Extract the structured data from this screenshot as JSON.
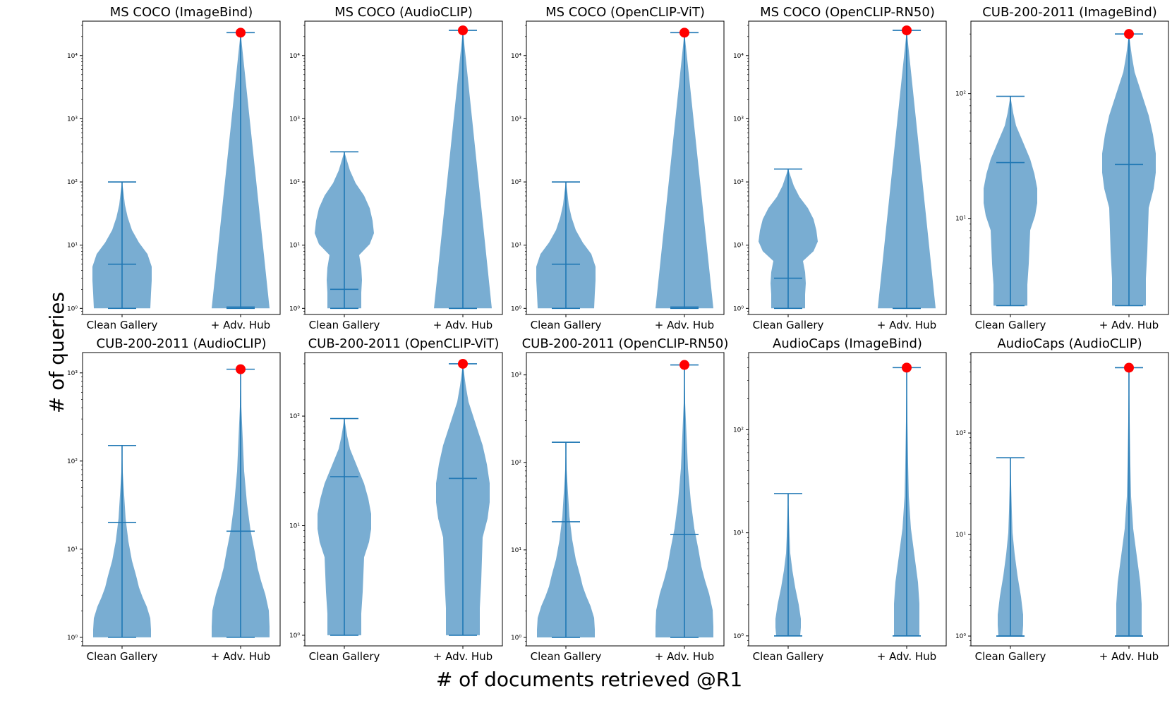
{
  "figure": {
    "xlabel": "# of documents retrieved @R1",
    "ylabel": "# of queries"
  },
  "colors": {
    "violin_fill": "#1f77b4",
    "line": "#1f77b4",
    "hub_marker": "#ff0000"
  },
  "chart_data": [
    {
      "type": "violin",
      "yscale": "log",
      "title": "MS COCO (ImageBind)",
      "categories": [
        "Clean Gallery",
        "+ Adv. Hub"
      ],
      "ylim": [
        0.8,
        35000
      ],
      "series": [
        {
          "name": "Clean Gallery",
          "min": 1,
          "max": 100,
          "median": 5
        },
        {
          "name": "+ Adv. Hub",
          "min": 1,
          "max": 23000,
          "median": 1.05,
          "hub_value": 23000
        }
      ]
    },
    {
      "type": "violin",
      "yscale": "log",
      "title": "MS COCO (AudioCLIP)",
      "categories": [
        "Clean Gallery",
        "+ Adv. Hub"
      ],
      "ylim": [
        0.8,
        35000
      ],
      "series": [
        {
          "name": "Clean Gallery",
          "min": 1,
          "max": 300,
          "median": 2
        },
        {
          "name": "+ Adv. Hub",
          "min": 1,
          "max": 25000,
          "median": 1,
          "hub_value": 25000
        }
      ]
    },
    {
      "type": "violin",
      "yscale": "log",
      "title": "MS COCO (OpenCLIP-ViT)",
      "categories": [
        "Clean Gallery",
        "+ Adv. Hub"
      ],
      "ylim": [
        0.8,
        35000
      ],
      "series": [
        {
          "name": "Clean Gallery",
          "min": 1,
          "max": 100,
          "median": 5
        },
        {
          "name": "+ Adv. Hub",
          "min": 1,
          "max": 23000,
          "median": 1.05,
          "hub_value": 23000
        }
      ]
    },
    {
      "type": "violin",
      "yscale": "log",
      "title": "MS COCO (OpenCLIP-RN50)",
      "categories": [
        "Clean Gallery",
        "+ Adv. Hub"
      ],
      "ylim": [
        0.8,
        35000
      ],
      "series": [
        {
          "name": "Clean Gallery",
          "min": 1,
          "max": 160,
          "median": 3
        },
        {
          "name": "+ Adv. Hub",
          "min": 1,
          "max": 25000,
          "median": 1,
          "hub_value": 25000
        }
      ]
    },
    {
      "type": "violin",
      "yscale": "log",
      "title": "CUB-200-2011 (ImageBind)",
      "categories": [
        "Clean Gallery",
        "+ Adv. Hub"
      ],
      "ylim": [
        1.7,
        380
      ],
      "series": [
        {
          "name": "Clean Gallery",
          "min": 2,
          "max": 95,
          "median": 28
        },
        {
          "name": "+ Adv. Hub",
          "min": 2,
          "max": 300,
          "median": 27,
          "hub_value": 300
        }
      ]
    },
    {
      "type": "violin",
      "yscale": "log",
      "title": "CUB-200-2011 (AudioCLIP)",
      "categories": [
        "Clean Gallery",
        "+ Adv. Hub"
      ],
      "ylim": [
        0.8,
        1700
      ],
      "series": [
        {
          "name": "Clean Gallery",
          "min": 1,
          "max": 150,
          "median": 20
        },
        {
          "name": "+ Adv. Hub",
          "min": 1,
          "max": 1100,
          "median": 16,
          "hub_value": 1100
        }
      ]
    },
    {
      "type": "violin",
      "yscale": "log",
      "title": "CUB-200-2011 (OpenCLIP-ViT)",
      "categories": [
        "Clean Gallery",
        "+ Adv. Hub"
      ],
      "ylim": [
        0.8,
        380
      ],
      "series": [
        {
          "name": "Clean Gallery",
          "min": 1,
          "max": 95,
          "median": 28
        },
        {
          "name": "+ Adv. Hub",
          "min": 1,
          "max": 300,
          "median": 27,
          "hub_value": 300
        }
      ]
    },
    {
      "type": "violin",
      "yscale": "log",
      "title": "CUB-200-2011 (OpenCLIP-RN50)",
      "categories": [
        "Clean Gallery",
        "+ Adv. Hub"
      ],
      "ylim": [
        0.8,
        1800
      ],
      "series": [
        {
          "name": "Clean Gallery",
          "min": 1,
          "max": 170,
          "median": 21
        },
        {
          "name": "+ Adv. Hub",
          "min": 1,
          "max": 1300,
          "median": 15,
          "hub_value": 1300
        }
      ]
    },
    {
      "type": "violin",
      "yscale": "log",
      "title": "AudioCaps (ImageBind)",
      "categories": [
        "Clean Gallery",
        "+ Adv. Hub"
      ],
      "ylim": [
        0.8,
        560
      ],
      "series": [
        {
          "name": "Clean Gallery",
          "min": 1,
          "max": 24,
          "median": 1
        },
        {
          "name": "+ Adv. Hub",
          "min": 1,
          "max": 400,
          "median": 1,
          "hub_value": 400
        }
      ]
    },
    {
      "type": "violin",
      "yscale": "log",
      "title": "AudioCaps (AudioCLIP)",
      "categories": [
        "Clean Gallery",
        "+ Adv. Hub"
      ],
      "ylim": [
        0.8,
        620
      ],
      "series": [
        {
          "name": "Clean Gallery",
          "min": 1,
          "max": 57,
          "median": 1
        },
        {
          "name": "+ Adv. Hub",
          "min": 1,
          "max": 440,
          "median": 1,
          "hub_value": 440
        }
      ]
    }
  ]
}
